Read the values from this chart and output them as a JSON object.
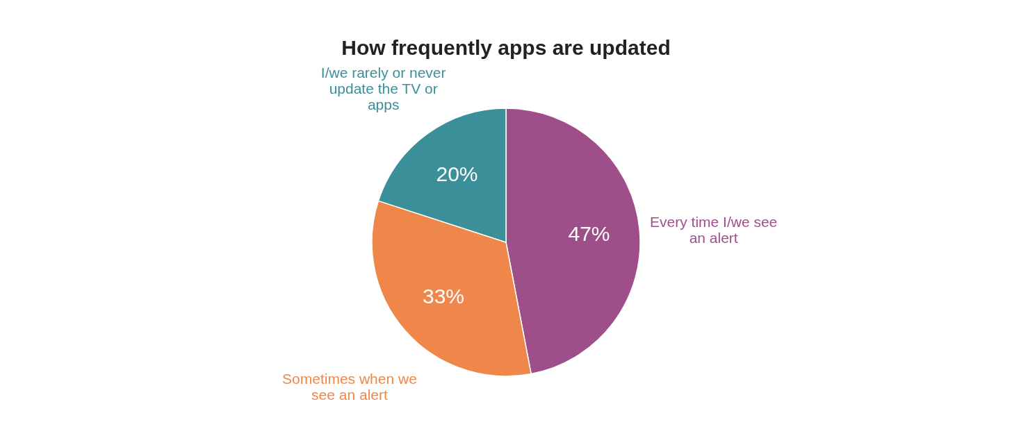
{
  "chart_data": {
    "type": "pie",
    "title": "How frequently apps are updated",
    "categories": [
      "Every time I/we see an alert",
      "Sometimes when we see an alert",
      "I/we rarely or never update the TV or apps"
    ],
    "values": [
      47,
      33,
      20
    ],
    "colors": [
      "#9e4f8a",
      "#f0874a",
      "#3a8f99"
    ],
    "value_labels": [
      "47%",
      "33%",
      "20%"
    ],
    "legend": false
  }
}
